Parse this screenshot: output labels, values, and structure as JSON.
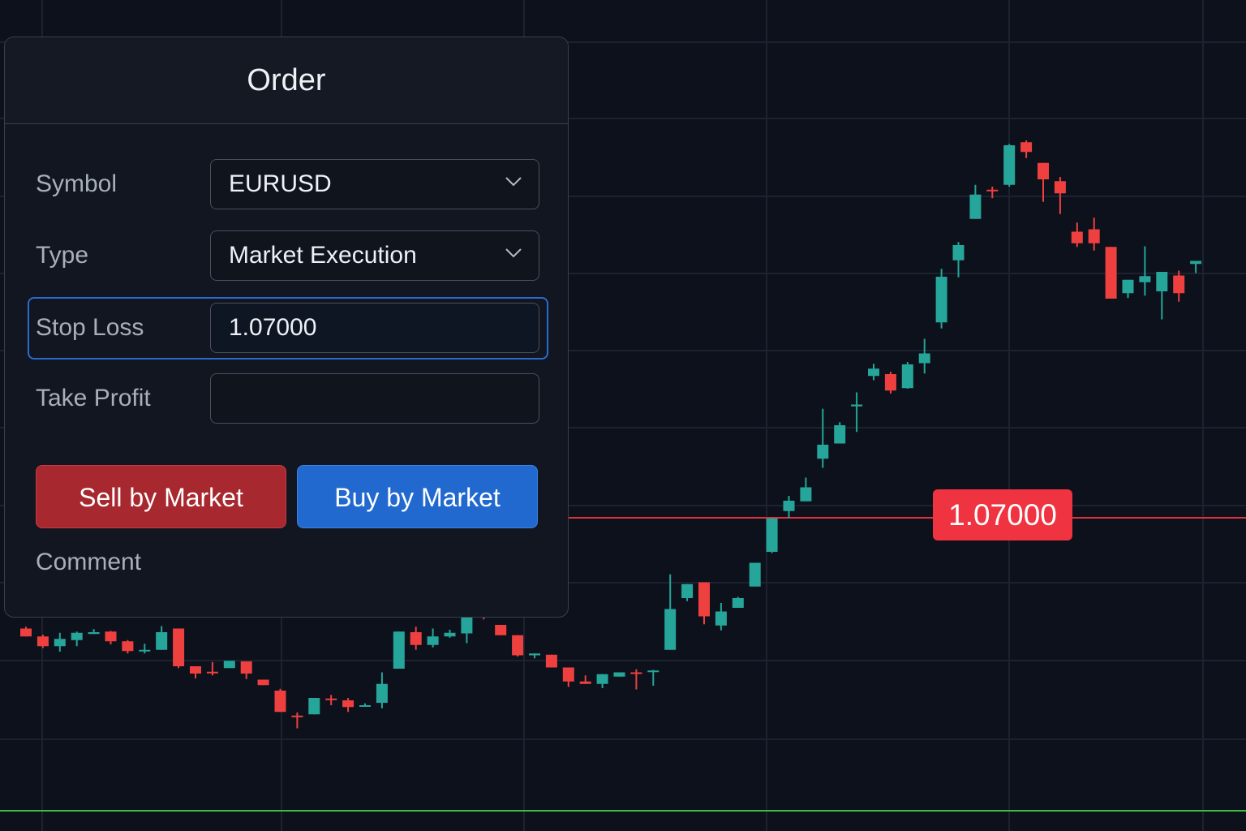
{
  "order": {
    "title": "Order",
    "symbol_label": "Symbol",
    "symbol_value": "EURUSD",
    "type_label": "Type",
    "type_value": "Market Execution",
    "stop_loss_label": "Stop Loss",
    "stop_loss_value": "1.07000",
    "take_profit_label": "Take Profit",
    "take_profit_value": "",
    "sell_label": "Sell by Market",
    "buy_label": "Buy by Market",
    "comment_label": "Comment"
  },
  "chart": {
    "stop_loss_badge": "1.07000",
    "colors": {
      "up": "#26a69a",
      "down": "#ef4040",
      "stop_line": "#e0323c",
      "bottom_line": "#3fbf3f",
      "background": "#0d111b",
      "grid": "#1c2230"
    },
    "chart_data": {
      "type": "candlestick",
      "note_units": "relative price units (no axis printed)",
      "candles": [
        [
          34,
          21,
          37,
          21
        ],
        [
          21,
          5,
          24,
          2
        ],
        [
          5,
          17,
          27,
          -4
        ],
        [
          15,
          27,
          29,
          5
        ],
        [
          25,
          28,
          33,
          25
        ],
        [
          29,
          13,
          30,
          8
        ],
        [
          13,
          -3,
          15,
          -7
        ],
        [
          -3,
          -1,
          9,
          -7
        ],
        [
          -1,
          28,
          38,
          0
        ],
        [
          34,
          -28,
          34,
          -31
        ],
        [
          -28,
          -40,
          -40,
          -48
        ],
        [
          -37,
          -38,
          -21,
          -43
        ],
        [
          -31,
          -19,
          -21,
          -26
        ],
        [
          -20,
          -40,
          -20,
          -49
        ],
        [
          -50,
          -59,
          -59,
          -59
        ],
        [
          -68,
          -103,
          -65,
          -103
        ],
        [
          -109,
          -111,
          -104,
          -130
        ],
        [
          -107,
          -80,
          -85,
          -107
        ],
        [
          -81,
          -82,
          -75,
          -92
        ],
        [
          -84,
          -95,
          -80,
          -103
        ],
        [
          -93,
          -92,
          -89,
          -94
        ],
        [
          -88,
          -57,
          -38,
          -97
        ],
        [
          -32,
          29,
          29,
          -32
        ],
        [
          28,
          7,
          37,
          -1
        ],
        [
          7,
          21,
          34,
          3
        ],
        [
          21,
          27,
          32,
          19
        ],
        [
          26,
          66,
          68,
          10
        ],
        [
          67,
          54,
          74,
          49
        ],
        [
          40,
          23,
          40,
          23
        ],
        [
          23,
          -10,
          23,
          -12
        ],
        [
          -10,
          -7,
          -7,
          -15
        ],
        [
          -9,
          -30,
          -9,
          -30
        ],
        [
          -30,
          -53,
          -53,
          -62
        ],
        [
          -53,
          -57,
          -43,
          -57
        ],
        [
          -57,
          -41,
          -45,
          -64
        ],
        [
          -45,
          -38,
          -40,
          -45
        ],
        [
          -38,
          -40,
          -33,
          -66
        ],
        [
          -36,
          -35,
          -34,
          -60
        ],
        [
          -1,
          66,
          123,
          0
        ],
        [
          84,
          107,
          107,
          79
        ],
        [
          110,
          54,
          110,
          41
        ],
        [
          39,
          62,
          76,
          31
        ],
        [
          68,
          84,
          86,
          68
        ],
        [
          103,
          142,
          142,
          103
        ],
        [
          160,
          215,
          216,
          158
        ],
        [
          227,
          244,
          252,
          215
        ],
        [
          243,
          266,
          282,
          246
        ],
        [
          313,
          336,
          395,
          298
        ],
        [
          338,
          368,
          373,
          338
        ],
        [
          399,
          402,
          422,
          357
        ],
        [
          449,
          461,
          469,
          442
        ],
        [
          452,
          425,
          456,
          420
        ],
        [
          429,
          468,
          472,
          428
        ],
        [
          470,
          486,
          510,
          453
        ],
        [
          537,
          612,
          625,
          527
        ],
        [
          639,
          664,
          669,
          611
        ],
        [
          707,
          747,
          763,
          719
        ],
        [
          755,
          753,
          760,
          741
        ],
        [
          763,
          828,
          830,
          760
        ],
        [
          833,
          817,
          836,
          807
        ],
        [
          799,
          772,
          799,
          735
        ],
        [
          769,
          749,
          776,
          715
        ],
        [
          686,
          667,
          701,
          661
        ],
        [
          690,
          667,
          709,
          655
        ],
        [
          661,
          576,
          661,
          579
        ],
        [
          585,
          607,
          607,
          577
        ],
        [
          603,
          613,
          662,
          581
        ],
        [
          588,
          620,
          596,
          542
        ],
        [
          614,
          585,
          622,
          571
        ],
        [
          633,
          638,
          636,
          618
        ]
      ],
      "stop_loss": 1.07
    }
  }
}
